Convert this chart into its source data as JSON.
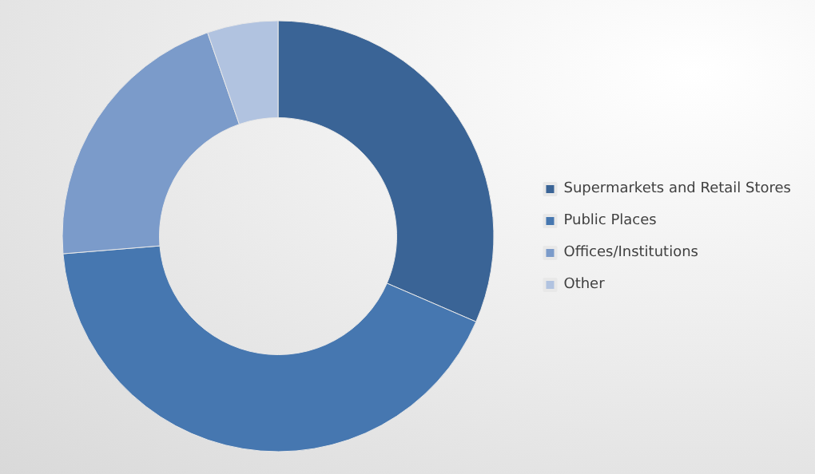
{
  "chart_data": {
    "type": "donut",
    "categories": [
      "Supermarkets and Retail Stores",
      "Public Places",
      "Offices/Institutions",
      "Other"
    ],
    "values": [
      31.5,
      42.2,
      21,
      5.3
    ],
    "colors": [
      "#3a6496",
      "#4677b0",
      "#7b9bca",
      "#b1c3e0"
    ],
    "legend": "right"
  }
}
